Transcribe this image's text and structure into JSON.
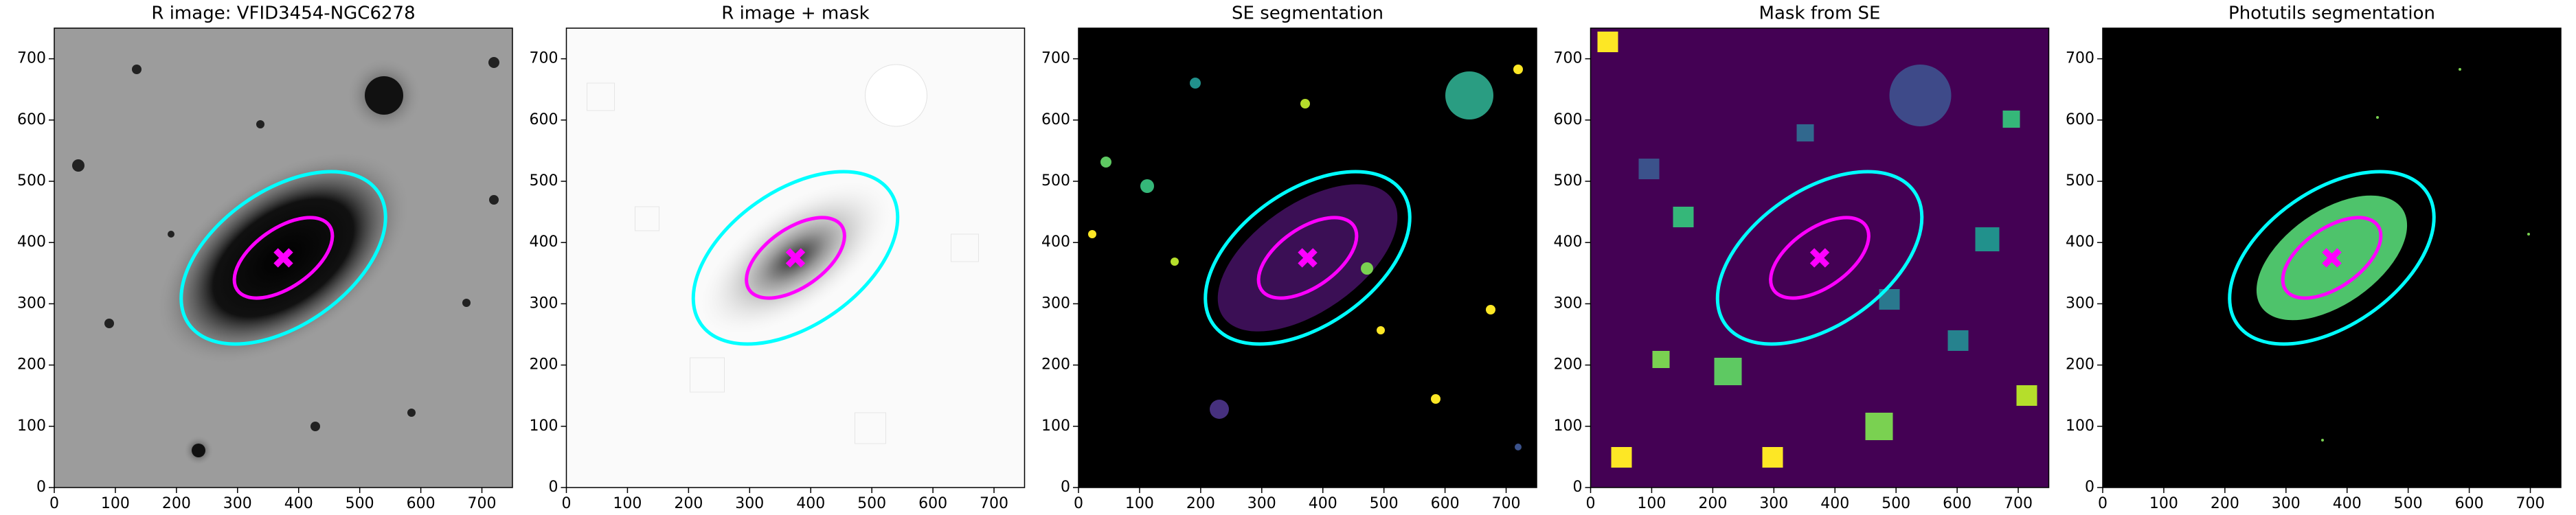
{
  "chart_data": [
    {
      "type": "image",
      "title": "R image: VFID3454-NGC6278",
      "xlim": [
        0,
        750
      ],
      "ylim": [
        0,
        750
      ],
      "xticks": [
        0,
        100,
        200,
        300,
        400,
        500,
        600,
        700
      ],
      "yticks": [
        0,
        100,
        200,
        300,
        400,
        500,
        600,
        700
      ],
      "ellipses": [
        {
          "color": "#00ffff",
          "center_x": 375,
          "center_y": 375,
          "semi_major": 189,
          "semi_minor": 110,
          "angle": 35
        },
        {
          "color": "#ff00ff",
          "center_x": 375,
          "center_y": 375,
          "semi_major": 92,
          "semi_minor": 48,
          "angle": 35
        }
      ],
      "marker": {
        "color": "#ff00ff",
        "x": 375,
        "y": 375
      }
    },
    {
      "type": "image",
      "title": "R image + mask",
      "xlim": [
        0,
        750
      ],
      "ylim": [
        0,
        750
      ],
      "xticks": [
        0,
        100,
        200,
        300,
        400,
        500,
        600,
        700
      ],
      "yticks": [
        0,
        100,
        200,
        300,
        400,
        500,
        600,
        700
      ],
      "ellipses": [
        {
          "color": "#00ffff",
          "center_x": 375,
          "center_y": 375,
          "semi_major": 189,
          "semi_minor": 110,
          "angle": 35
        },
        {
          "color": "#ff00ff",
          "center_x": 375,
          "center_y": 375,
          "semi_major": 92,
          "semi_minor": 48,
          "angle": 35
        }
      ],
      "marker": {
        "color": "#ff00ff",
        "x": 375,
        "y": 375
      }
    },
    {
      "type": "image",
      "title": "SE segmentation",
      "xlim": [
        0,
        750
      ],
      "ylim": [
        0,
        750
      ],
      "xticks": [
        0,
        100,
        200,
        300,
        400,
        500,
        600,
        700
      ],
      "yticks": [
        0,
        100,
        200,
        300,
        400,
        500,
        600,
        700
      ],
      "ellipses": [
        {
          "color": "#00ffff",
          "center_x": 375,
          "center_y": 375,
          "semi_major": 189,
          "semi_minor": 110,
          "angle": 35
        },
        {
          "color": "#ff00ff",
          "center_x": 375,
          "center_y": 375,
          "semi_major": 92,
          "semi_minor": 48,
          "angle": 35
        }
      ],
      "marker": {
        "color": "#ff00ff",
        "x": 375,
        "y": 375
      }
    },
    {
      "type": "image",
      "title": "Mask from SE",
      "xlim": [
        0,
        750
      ],
      "ylim": [
        0,
        750
      ],
      "xticks": [
        0,
        100,
        200,
        300,
        400,
        500,
        600,
        700
      ],
      "yticks": [
        0,
        100,
        200,
        300,
        400,
        500,
        600,
        700
      ],
      "ellipses": [
        {
          "color": "#00ffff",
          "center_x": 375,
          "center_y": 375,
          "semi_major": 189,
          "semi_minor": 110,
          "angle": 35
        },
        {
          "color": "#ff00ff",
          "center_x": 375,
          "center_y": 375,
          "semi_major": 92,
          "semi_minor": 48,
          "angle": 35
        }
      ],
      "marker": {
        "color": "#ff00ff",
        "x": 375,
        "y": 375
      }
    },
    {
      "type": "image",
      "title": "Photutils segmentation",
      "xlim": [
        0,
        750
      ],
      "ylim": [
        0,
        750
      ],
      "xticks": [
        0,
        100,
        200,
        300,
        400,
        500,
        600,
        700
      ],
      "yticks": [
        0,
        100,
        200,
        300,
        400,
        500,
        600,
        700
      ],
      "ellipses": [
        {
          "color": "#00ffff",
          "center_x": 375,
          "center_y": 375,
          "semi_major": 189,
          "semi_minor": 110,
          "angle": 35
        },
        {
          "color": "#ff00ff",
          "center_x": 375,
          "center_y": 375,
          "semi_major": 92,
          "semi_minor": 48,
          "angle": 35
        }
      ],
      "marker": {
        "color": "#ff00ff",
        "x": 375,
        "y": 375
      }
    }
  ]
}
